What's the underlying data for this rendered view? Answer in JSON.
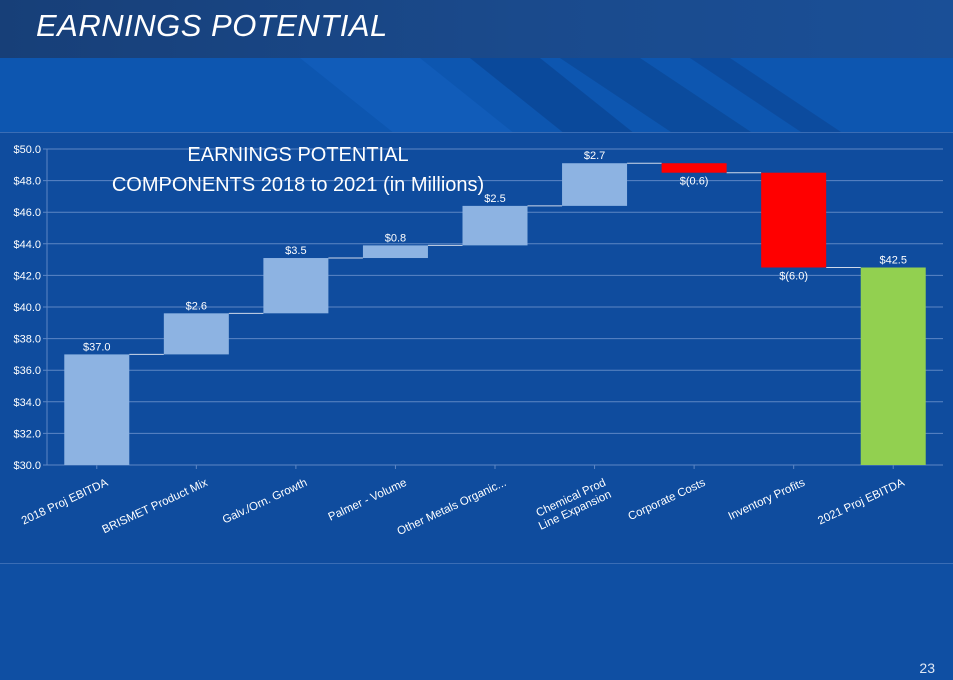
{
  "slide": {
    "title": "EARNINGS POTENTIAL",
    "page_number": "23"
  },
  "colors": {
    "increase": "#8db3e2",
    "decrease": "#ff0000",
    "total": "#92d050",
    "label": "#ffffff",
    "grid": "#5d86c4"
  },
  "chart_data": {
    "type": "bar",
    "subtype": "waterfall",
    "title_lines": [
      "EARNINGS POTENTIAL",
      "COMPONENTS 2018 to 2021 (in Millions)"
    ],
    "ylim": [
      30,
      50
    ],
    "y_ticks": [
      {
        "value": 30,
        "label": "$30.0"
      },
      {
        "value": 32,
        "label": "$32.0"
      },
      {
        "value": 34,
        "label": "$34.0"
      },
      {
        "value": 36,
        "label": "$36.0"
      },
      {
        "value": 38,
        "label": "$38.0"
      },
      {
        "value": 40,
        "label": "$40.0"
      },
      {
        "value": 42,
        "label": "$42.0"
      },
      {
        "value": 44,
        "label": "$44.0"
      },
      {
        "value": 46,
        "label": "$46.0"
      },
      {
        "value": 48,
        "label": "$48.0"
      },
      {
        "value": 50,
        "label": "$50.0"
      }
    ],
    "grid": true,
    "bars": [
      {
        "category": "2018 Proj EBITDA",
        "start": 30,
        "end": 37.0,
        "kind": "total-start",
        "label": "$37.0"
      },
      {
        "category": "BRISMET Product Mix",
        "start": 37.0,
        "end": 39.6,
        "kind": "increase",
        "label": "$2.6"
      },
      {
        "category": "Galv./Orn. Growth",
        "start": 39.6,
        "end": 43.1,
        "kind": "increase",
        "label": "$3.5"
      },
      {
        "category": "Palmer - Volume",
        "start": 43.1,
        "end": 43.9,
        "kind": "increase",
        "label": "$0.8"
      },
      {
        "category": "Other Metals Organic...",
        "start": 43.9,
        "end": 46.4,
        "kind": "increase",
        "label": "$2.5"
      },
      {
        "category": "Chemical Prod Line Expansion",
        "category_lines": [
          "Chemical Prod",
          "Line Expansion"
        ],
        "start": 46.4,
        "end": 49.1,
        "kind": "increase",
        "label": "$2.7"
      },
      {
        "category": "Corporate Costs",
        "start": 49.1,
        "end": 48.5,
        "kind": "decrease",
        "label": "$(0.6)"
      },
      {
        "category": "Inventory Profits",
        "start": 48.5,
        "end": 42.5,
        "kind": "decrease",
        "label": "$(6.0)"
      },
      {
        "category": "2021 Proj EBITDA",
        "start": 30,
        "end": 42.5,
        "kind": "total",
        "label": "$42.5"
      }
    ]
  }
}
